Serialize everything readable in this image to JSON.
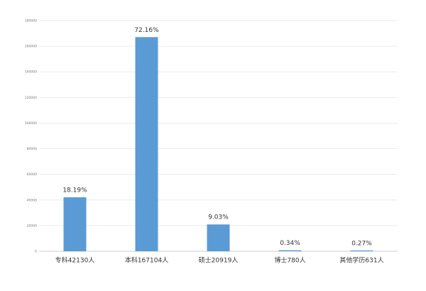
{
  "chart_data": {
    "type": "bar",
    "categories": [
      "专科42130人",
      "本科167104人",
      "硕士20919人",
      "博士780人",
      "其他学历631人"
    ],
    "values": [
      42130,
      167104,
      20919,
      780,
      631
    ],
    "annotations": [
      "18.19%",
      "72.16%",
      "9.03%",
      "0.34%",
      "0.27%"
    ],
    "color": "#5b9bd5",
    "ylim": [
      0,
      180000
    ],
    "yticks": [
      0,
      20000,
      40000,
      60000,
      80000,
      100000,
      120000,
      140000,
      160000,
      180000
    ],
    "grid": true
  }
}
